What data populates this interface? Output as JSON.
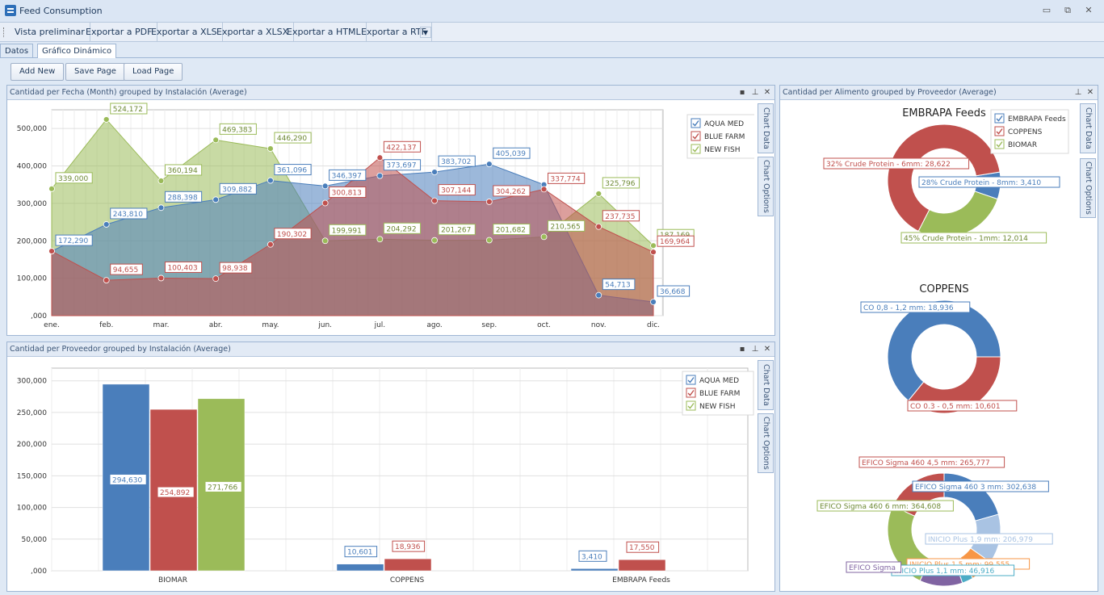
{
  "window": {
    "title": "Feed Consumption"
  },
  "toolbar": {
    "items": [
      "Vista preliminar",
      "Exportar a PDF",
      "Exportar a XLS",
      "Exportar a XLSX",
      "Exportar a HTML",
      "Exportar a RTF"
    ]
  },
  "tabs": [
    "Datos",
    "Gráfico Dinámico"
  ],
  "buttons": {
    "add": "Add New",
    "save": "Save Page",
    "load": "Load Page"
  },
  "panels": {
    "area": {
      "title": "Cantidad per Fecha (Month) grouped by Instalación (Average)"
    },
    "bar": {
      "title": "Cantidad per Proveedor grouped by Instalación (Average)"
    },
    "donut": {
      "title": "Cantidad per Alimento grouped by Proveedor (Average)"
    }
  },
  "sidetabs": {
    "data": "Chart Data",
    "options": "Chart Options"
  },
  "colors": {
    "blue": "#4a7ebb",
    "red": "#c0504d",
    "green": "#9bbb59",
    "orange": "#f79646",
    "purple": "#8064a2",
    "teal": "#4bacc6"
  },
  "chart_data": [
    {
      "type": "area",
      "categories": [
        "ene.",
        "feb.",
        "mar.",
        "abr.",
        "may.",
        "jun.",
        "jul.",
        "ago.",
        "sep.",
        "oct.",
        "nov.",
        "dic."
      ],
      "ylim": [
        0,
        550000
      ],
      "yticks": [
        ",000",
        "100,000",
        "200,000",
        "300,000",
        "400,000",
        "500,000"
      ],
      "legend": [
        "AQUA MED",
        "BLUE FARM",
        "NEW FISH"
      ],
      "series": [
        {
          "name": "NEW FISH",
          "values": [
            339000,
            524172,
            360194,
            469383,
            446290,
            199991,
            204292,
            201267,
            201682,
            210565,
            325796,
            187169
          ],
          "labels": [
            "339,000",
            "524,172",
            "360,194",
            "469,383",
            "446,290",
            "199,991",
            "204,292",
            "201,267",
            "201,682",
            "210,565",
            "325,796",
            "187,169"
          ]
        },
        {
          "name": "AQUA MED",
          "values": [
            172290,
            243810,
            288398,
            309882,
            361096,
            346397,
            373697,
            383702,
            405039,
            350000,
            54713,
            36668
          ],
          "labels": [
            "172,290",
            "243,810",
            "288,398",
            "309,882",
            "361,096",
            "346,397",
            "373,697",
            "383,702",
            "405,039",
            "",
            "54,713",
            "36,668"
          ]
        },
        {
          "name": "BLUE FARM",
          "values": [
            172290,
            94655,
            100403,
            98938,
            190302,
            300813,
            422137,
            307144,
            304262,
            337774,
            237735,
            169964
          ],
          "labels": [
            "",
            "94,655",
            "100,403",
            "98,938",
            "190,302",
            "300,813",
            "422,137",
            "307,144",
            "304,262",
            "337,774",
            "237,735",
            "169,964"
          ]
        }
      ]
    },
    {
      "type": "bar",
      "categories": [
        "BIOMAR",
        "COPPENS",
        "EMBRAPA Feeds"
      ],
      "ylim": [
        0,
        320000
      ],
      "yticks": [
        ",000",
        "50,000",
        "100,000",
        "150,000",
        "200,000",
        "250,000",
        "300,000"
      ],
      "legend": [
        "AQUA MED",
        "BLUE FARM",
        "NEW FISH"
      ],
      "series": [
        {
          "name": "AQUA MED",
          "values": [
            294630,
            10601,
            3410
          ],
          "labels": [
            "294,630",
            "10,601",
            "3,410"
          ]
        },
        {
          "name": "BLUE FARM",
          "values": [
            254892,
            18936,
            17550
          ],
          "labels": [
            "254,892",
            "18,936",
            "17,550"
          ]
        },
        {
          "name": "NEW FISH",
          "values": [
            271766,
            null,
            null
          ],
          "labels": [
            "271,766",
            "",
            ""
          ]
        }
      ]
    },
    {
      "type": "pie",
      "legend": [
        "EMBRAPA Feeds",
        "COPPENS",
        "BIOMAR"
      ],
      "pies": [
        {
          "title": "EMBRAPA Feeds",
          "slices": [
            {
              "label": "28% Crude Protein - 8mm: 3,410",
              "value": 3410
            },
            {
              "label": "45% Crude Protein - 1mm: 12,014",
              "value": 12014
            },
            {
              "label": "32% Crude Protein - 6mm: 28,622",
              "value": 28622
            }
          ]
        },
        {
          "title": "COPPENS",
          "slices": [
            {
              "label": "CO 0.3 - 0,5 mm: 10,601",
              "value": 10601
            },
            {
              "label": "CO 0,8 - 1,2 mm: 18,936",
              "value": 18936
            }
          ]
        },
        {
          "title": "BIOMAR",
          "slices": [
            {
              "label": "EFICO Sigma 460 3 mm: 302,638",
              "value": 302638
            },
            {
              "label": "INICIO Plus 1,9 mm: 206,979",
              "value": 206979
            },
            {
              "label": "INICIO Plus 1,5 mm: 99,555",
              "value": 99555
            },
            {
              "label": "INICIO Plus 1,1 mm: 46,916",
              "value": 46916
            },
            {
              "label": "EFICO Sigma",
              "value": 180000
            },
            {
              "label": "EFICO Sigma 460 6 mm: 364,608",
              "value": 364608
            },
            {
              "label": "EFICO Sigma 460 4,5 mm: 265,777",
              "value": 265777
            }
          ]
        }
      ]
    }
  ]
}
